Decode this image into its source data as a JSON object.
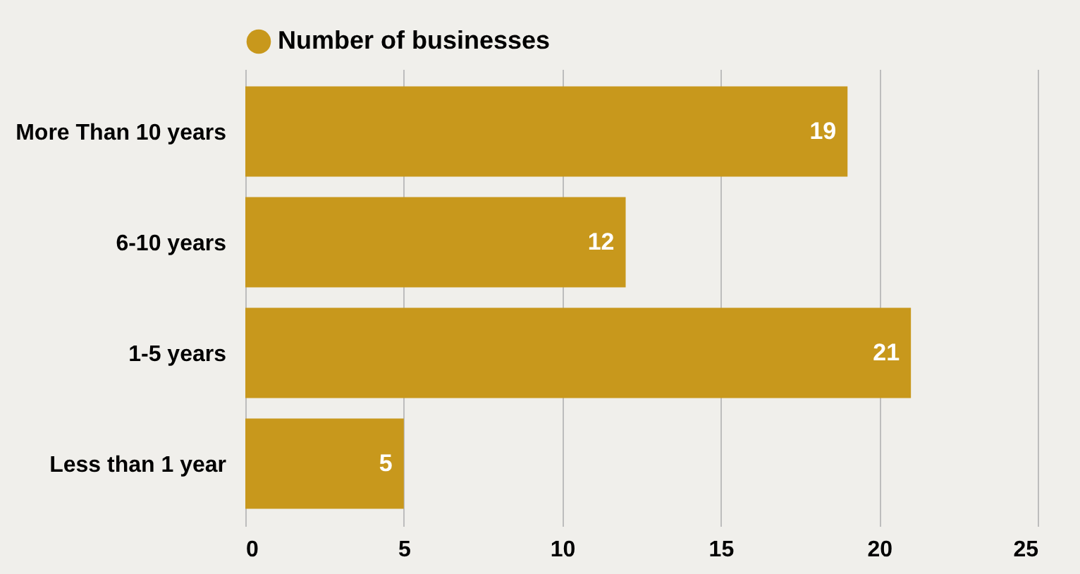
{
  "chart_data": {
    "type": "bar",
    "orientation": "horizontal",
    "categories": [
      "More Than 10 years",
      "6-10 years",
      "1-5 years",
      "Less than 1 year"
    ],
    "series": [
      {
        "name": "Number of businesses",
        "color": "#c8981c",
        "values": [
          19,
          12,
          21,
          5
        ]
      }
    ],
    "xlim": [
      0,
      25
    ],
    "xticks": [
      0,
      5,
      10,
      15,
      20,
      25
    ],
    "grid": "x",
    "legend": "top",
    "data_labels": true
  }
}
